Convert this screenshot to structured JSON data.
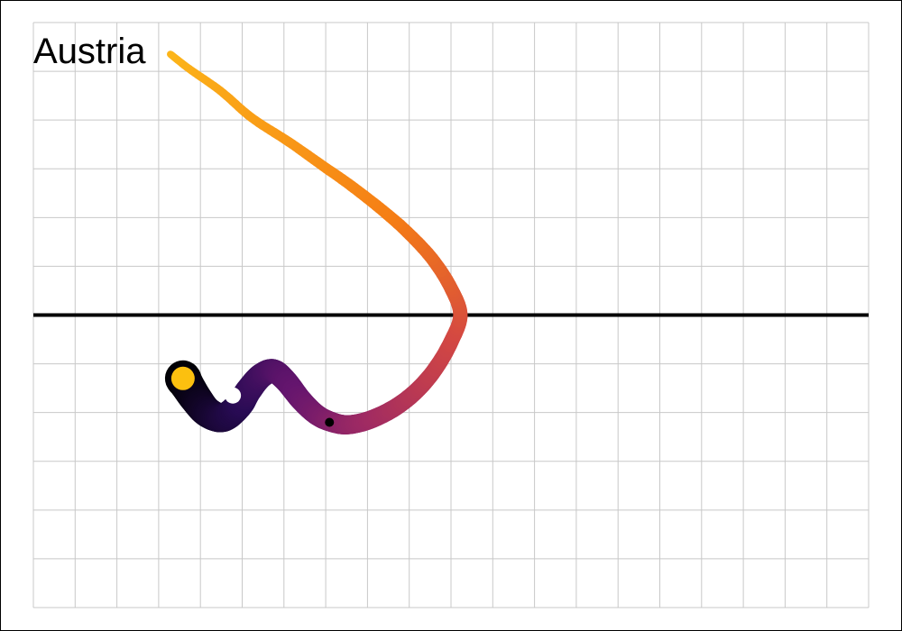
{
  "chart_data": {
    "type": "line",
    "title": "Austria",
    "xlabel": "",
    "ylabel": "",
    "grid": true,
    "baseline_y": 0,
    "series": [
      {
        "points": [
          [
            -2.4,
            -1.3
          ],
          [
            -2.2,
            -1.7
          ],
          [
            -2.0,
            -2.0
          ],
          [
            -1.75,
            -2.1
          ],
          [
            -1.5,
            -1.85
          ],
          [
            -1.35,
            -1.55
          ],
          [
            -1.15,
            -1.25
          ],
          [
            -0.95,
            -1.15
          ],
          [
            -0.75,
            -1.35
          ],
          [
            -0.5,
            -1.75
          ],
          [
            -0.25,
            -2.05
          ],
          [
            0.0,
            -2.2
          ],
          [
            0.25,
            -2.25
          ],
          [
            0.6,
            -2.15
          ],
          [
            1.0,
            -1.9
          ],
          [
            1.35,
            -1.55
          ],
          [
            1.65,
            -1.1
          ],
          [
            1.9,
            -0.55
          ],
          [
            2.05,
            0.0
          ],
          [
            1.9,
            0.55
          ],
          [
            1.6,
            1.15
          ],
          [
            1.2,
            1.7
          ],
          [
            0.8,
            2.15
          ],
          [
            0.3,
            2.65
          ],
          [
            -0.2,
            3.1
          ],
          [
            -0.7,
            3.55
          ],
          [
            -1.3,
            4.05
          ],
          [
            -1.8,
            4.6
          ],
          [
            -2.3,
            5.05
          ],
          [
            -2.6,
            5.35
          ]
        ],
        "color_start": "#000004",
        "color_end": "#fcb519",
        "stroke_width_start": 40,
        "stroke_width_end": 8
      }
    ],
    "markers": [
      {
        "x": -2.4,
        "y": -1.3,
        "color": "#fcc00f"
      },
      {
        "x": -1.6,
        "y": -1.65,
        "color": "#ffffff"
      },
      {
        "x": -0.05,
        "y": -2.2,
        "color": "#000000"
      }
    ],
    "xlim": [
      -4.8,
      8.6
    ],
    "ylim": [
      -6.0,
      6.0
    ]
  }
}
